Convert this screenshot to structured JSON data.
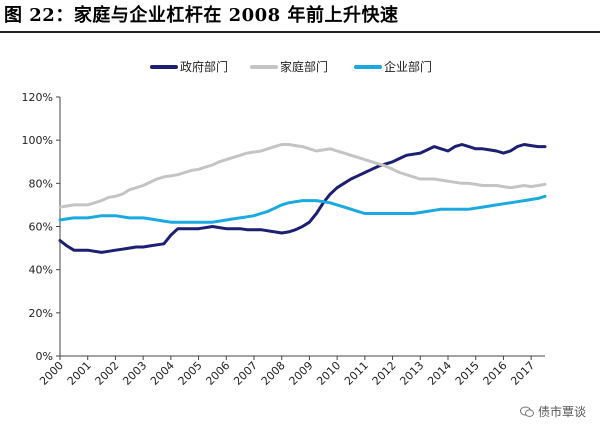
{
  "title": "图 22：家庭与企业杠杆在 2008 年前上升快速",
  "watermark": "债市覃谈",
  "colors": {
    "gov": "#1c1f72",
    "household": "#c4c4c4",
    "corp": "#1aa9e0"
  },
  "chart_data": {
    "type": "line",
    "title": "",
    "xlabel": "",
    "ylabel": "",
    "ylim": [
      0,
      120
    ],
    "yticks": [
      0,
      20,
      40,
      60,
      80,
      100,
      120
    ],
    "ytick_labels": [
      "0%",
      "20%",
      "40%",
      "60%",
      "80%",
      "100%",
      "120%"
    ],
    "xticks": [
      "2000",
      "2001",
      "2002",
      "2003",
      "2004",
      "2005",
      "2006",
      "2007",
      "2008",
      "2009",
      "2010",
      "2011",
      "2012",
      "2013",
      "2014",
      "2015",
      "2016",
      "2017"
    ],
    "x": [
      2000.0,
      2000.25,
      2000.5,
      2000.75,
      2001.0,
      2001.25,
      2001.5,
      2001.75,
      2002.0,
      2002.25,
      2002.5,
      2002.75,
      2003.0,
      2003.25,
      2003.5,
      2003.75,
      2004.0,
      2004.25,
      2004.5,
      2004.75,
      2005.0,
      2005.25,
      2005.5,
      2005.75,
      2006.0,
      2006.25,
      2006.5,
      2006.75,
      2007.0,
      2007.25,
      2007.5,
      2007.75,
      2008.0,
      2008.25,
      2008.5,
      2008.75,
      2009.0,
      2009.25,
      2009.5,
      2009.75,
      2010.0,
      2010.25,
      2010.5,
      2010.75,
      2011.0,
      2011.25,
      2011.5,
      2011.75,
      2012.0,
      2012.25,
      2012.5,
      2012.75,
      2013.0,
      2013.25,
      2013.5,
      2013.75,
      2014.0,
      2014.25,
      2014.5,
      2014.75,
      2015.0,
      2015.25,
      2015.5,
      2015.75,
      2016.0,
      2016.25,
      2016.5,
      2016.75,
      2017.0,
      2017.25,
      2017.5
    ],
    "legend_position": "top-center",
    "series": [
      {
        "name": "政府部门",
        "color": "#1c1f72",
        "values": [
          53.5,
          51,
          49,
          49,
          49,
          48.5,
          48,
          48.5,
          49,
          49.5,
          50,
          50.5,
          50.5,
          51,
          51.5,
          52,
          56,
          59,
          59,
          59,
          59,
          59.5,
          60,
          59.5,
          59,
          59,
          59,
          58.5,
          58.5,
          58.5,
          58,
          57.5,
          57,
          57.5,
          58.5,
          60,
          62,
          66,
          71,
          75,
          78,
          80,
          82,
          83.5,
          85,
          86.5,
          88,
          89,
          90,
          91.5,
          93,
          93.5,
          94,
          95.5,
          97,
          96,
          95,
          97,
          98,
          97,
          96,
          96,
          95.5,
          95,
          94,
          95,
          97,
          98,
          97.5,
          97,
          97
        ]
      },
      {
        "name": "家庭部门",
        "color": "#c4c4c4",
        "values": [
          69,
          69.5,
          70,
          70,
          70,
          71,
          72,
          73.5,
          74,
          75,
          77,
          78,
          79,
          80.5,
          82,
          83,
          83.5,
          84,
          85,
          86,
          86.5,
          87.5,
          88.5,
          90,
          91,
          92,
          93,
          94,
          94.5,
          95,
          96,
          97,
          98,
          98,
          97.5,
          97,
          96,
          95,
          95.5,
          96,
          95,
          94,
          93,
          92,
          91,
          90,
          89,
          88,
          86.5,
          85,
          84,
          83,
          82,
          82,
          82,
          81.5,
          81,
          80.5,
          80,
          80,
          79.5,
          79,
          79,
          79,
          78.5,
          78,
          78.5,
          79,
          78.5,
          79,
          79.5
        ]
      },
      {
        "name": "企业部门",
        "color": "#1aa9e0",
        "values": [
          63,
          63.5,
          64,
          64,
          64,
          64.5,
          65,
          65,
          65,
          64.5,
          64,
          64,
          64,
          63.5,
          63,
          62.5,
          62,
          62,
          62,
          62,
          62,
          62,
          62,
          62.5,
          63,
          63.5,
          64,
          64.5,
          65,
          66,
          67,
          68.5,
          70,
          71,
          71.5,
          72,
          72,
          72,
          71.5,
          71,
          70,
          69,
          68,
          67,
          66,
          66,
          66,
          66,
          66,
          66,
          66,
          66,
          66.5,
          67,
          67.5,
          68,
          68,
          68,
          68,
          68,
          68.5,
          69,
          69.5,
          70,
          70.5,
          71,
          71.5,
          72,
          72.5,
          73,
          74
        ]
      }
    ]
  }
}
